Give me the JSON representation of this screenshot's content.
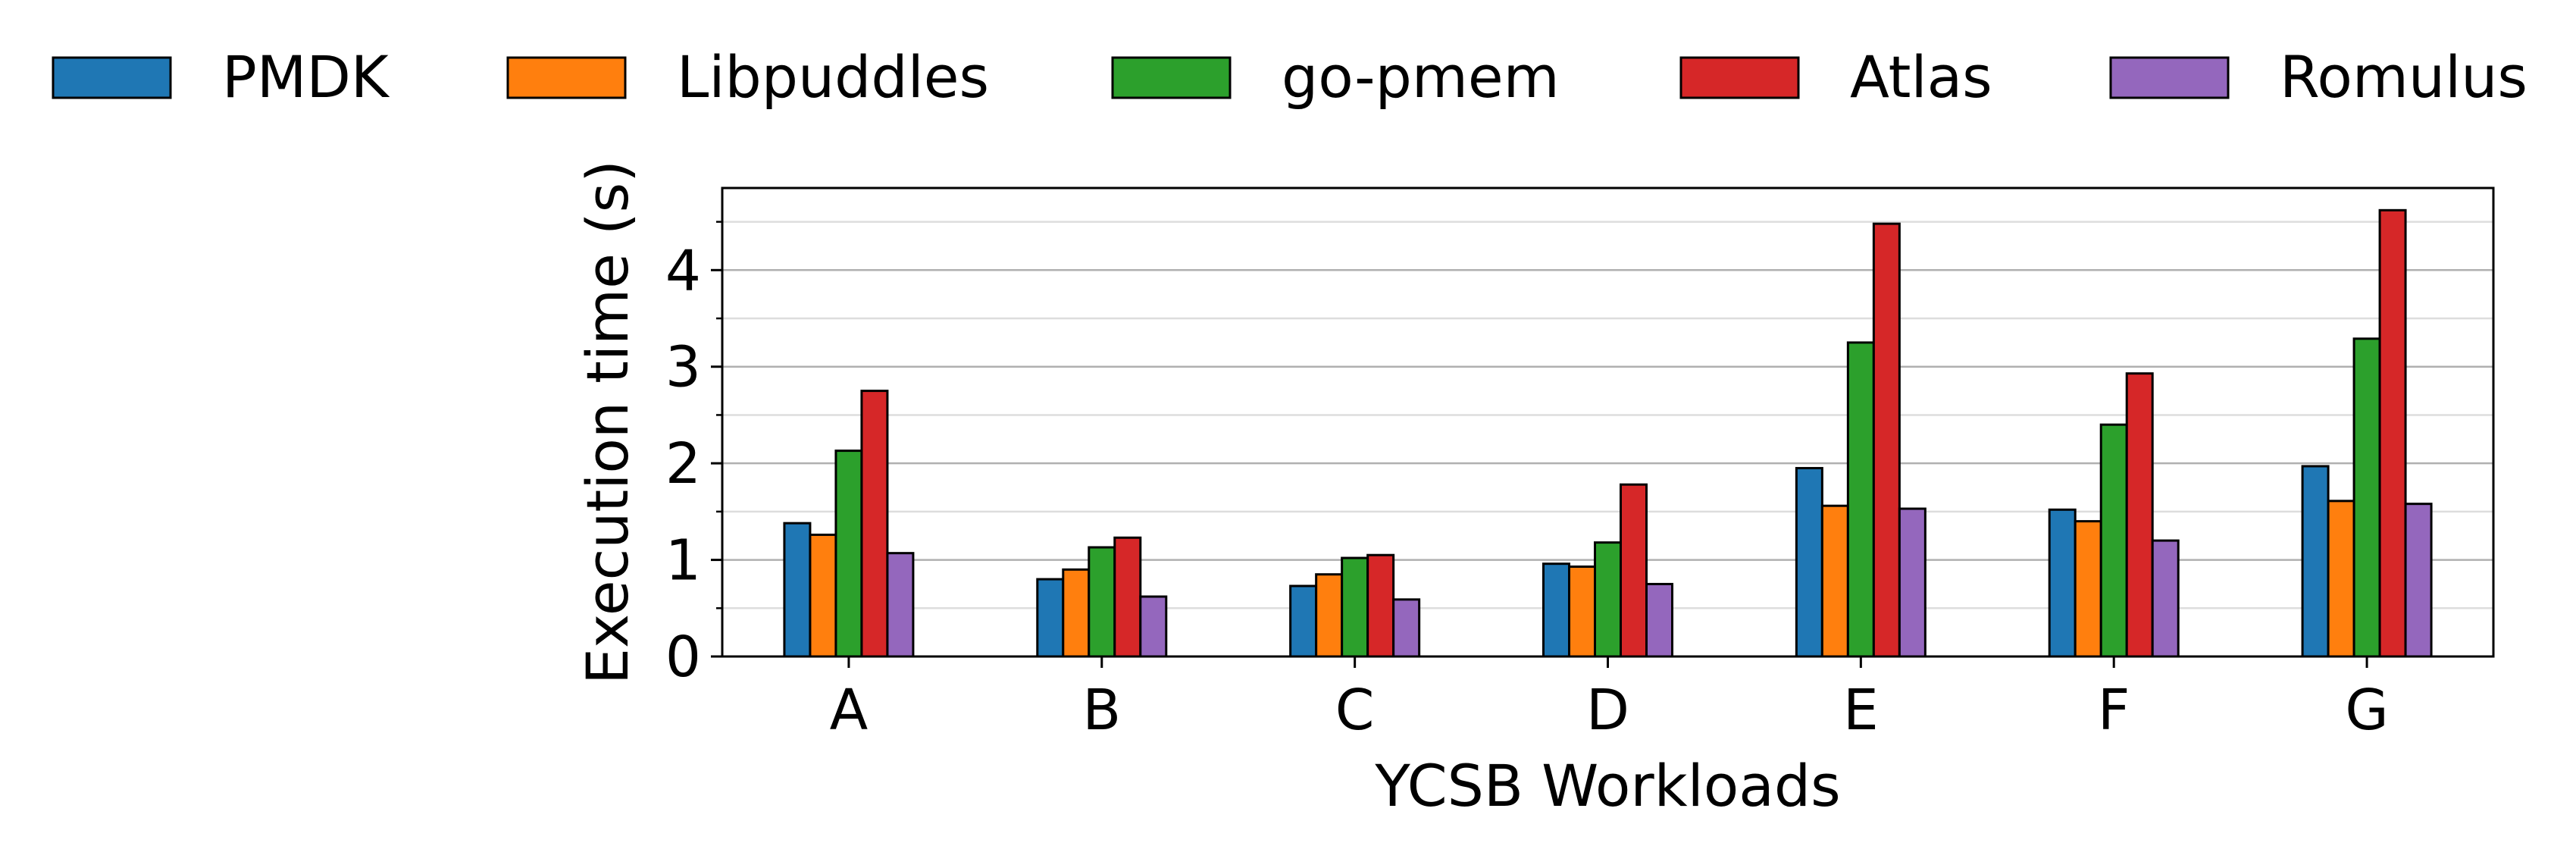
{
  "chart_data": {
    "type": "bar",
    "title": "",
    "xlabel": "YCSB Workloads",
    "ylabel": "Execution time (s)",
    "categories": [
      "A",
      "B",
      "C",
      "D",
      "E",
      "F",
      "G"
    ],
    "ylim": [
      0,
      4.85
    ],
    "yticks": [
      0,
      1,
      2,
      3,
      4
    ],
    "yticks_minor": [
      0.5,
      1.5,
      2.5,
      3.5,
      4.5
    ],
    "grid": "horizontal major and minor",
    "legend_position": "top",
    "series": [
      {
        "name": "PMDK",
        "color": "#1f77b4",
        "values": [
          1.38,
          0.8,
          0.73,
          0.96,
          1.95,
          1.52,
          1.97
        ]
      },
      {
        "name": "Libpuddles",
        "color": "#ff7f0e",
        "values": [
          1.26,
          0.9,
          0.85,
          0.93,
          1.56,
          1.4,
          1.61
        ]
      },
      {
        "name": "go-pmem",
        "color": "#2ca02c",
        "values": [
          2.13,
          1.13,
          1.02,
          1.18,
          3.25,
          2.4,
          3.29
        ]
      },
      {
        "name": "Atlas",
        "color": "#d62728",
        "values": [
          2.75,
          1.23,
          1.05,
          1.78,
          4.48,
          2.93,
          4.62
        ]
      },
      {
        "name": "Romulus",
        "color": "#9467bd",
        "values": [
          1.07,
          0.62,
          0.59,
          0.75,
          1.53,
          1.2,
          1.58
        ]
      }
    ]
  }
}
